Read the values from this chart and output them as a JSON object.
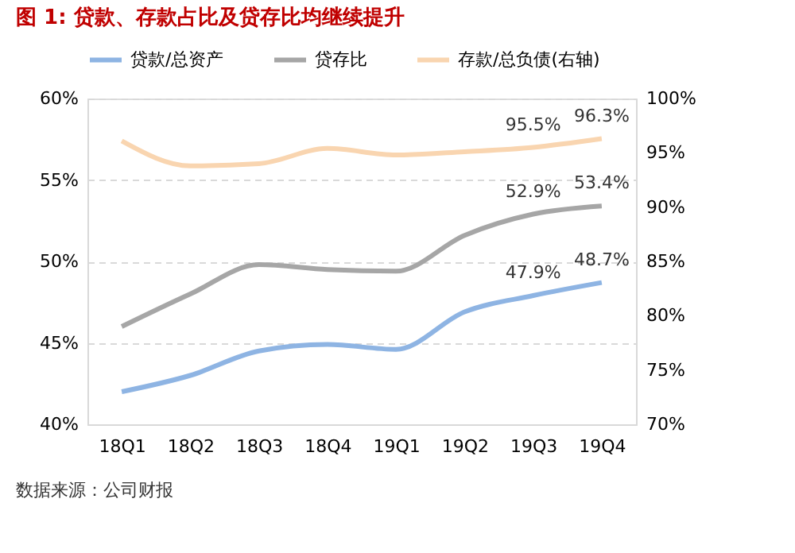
{
  "chart_data": {
    "type": "line",
    "title": "图 1:   贷款、存款占比及贷存比均继续提升",
    "categories": [
      "18Q1",
      "18Q2",
      "18Q3",
      "18Q4",
      "19Q1",
      "19Q2",
      "19Q3",
      "19Q4"
    ],
    "series": [
      {
        "name": "贷款/总资产",
        "color": "#8eb4e3",
        "values": [
          42.0,
          43.0,
          44.5,
          44.9,
          44.6,
          46.9,
          47.9,
          48.7
        ],
        "value_labels": [
          null,
          null,
          null,
          null,
          null,
          null,
          "47.9%",
          "48.7%"
        ]
      },
      {
        "name": "贷存比",
        "color": "#a6a6a6",
        "values": [
          46.0,
          48.0,
          49.8,
          49.5,
          49.4,
          51.6,
          52.9,
          53.4
        ],
        "value_labels": [
          null,
          null,
          null,
          null,
          null,
          null,
          "52.9%",
          "53.4%"
        ]
      },
      {
        "name": "存款/总负债(右轴)",
        "color": "#f9d5b0",
        "axis": "y2",
        "values": [
          96.1,
          93.8,
          94.0,
          95.4,
          94.8,
          95.1,
          95.5,
          96.3
        ],
        "value_labels": [
          null,
          null,
          null,
          null,
          null,
          null,
          "95.5%",
          "96.3%"
        ]
      }
    ],
    "ylim": [
      40,
      60
    ],
    "yticks": [
      {
        "value": 40,
        "label": "40%"
      },
      {
        "value": 45,
        "label": "45%"
      },
      {
        "value": 50,
        "label": "50%"
      },
      {
        "value": 55,
        "label": "55%"
      },
      {
        "value": 60,
        "label": "60%"
      }
    ],
    "y2lim": [
      70,
      100
    ],
    "y2ticks": [
      {
        "value": 70,
        "label": "70%"
      },
      {
        "value": 75,
        "label": "75%"
      },
      {
        "value": 80,
        "label": "80%"
      },
      {
        "value": 85,
        "label": "85%"
      },
      {
        "value": 90,
        "label": "90%"
      },
      {
        "value": 95,
        "label": "95%"
      },
      {
        "value": 100,
        "label": "100%"
      }
    ],
    "grid": "y",
    "legend": "top",
    "marker": "none",
    "line_style": "solid",
    "annotations": [
      "数据来源：公司财报"
    ]
  }
}
